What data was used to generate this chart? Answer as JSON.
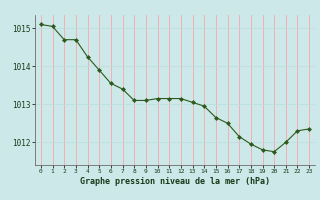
{
  "x": [
    0,
    1,
    2,
    3,
    4,
    5,
    6,
    7,
    8,
    9,
    10,
    11,
    12,
    13,
    14,
    15,
    16,
    17,
    18,
    19,
    20,
    21,
    22,
    23
  ],
  "y": [
    1015.1,
    1015.05,
    1014.7,
    1014.7,
    1014.25,
    1013.9,
    1013.55,
    1013.4,
    1013.1,
    1013.1,
    1013.15,
    1013.15,
    1013.15,
    1013.05,
    1012.95,
    1012.65,
    1012.5,
    1012.15,
    1011.95,
    1011.8,
    1011.75,
    1012.0,
    1012.3,
    1012.35
  ],
  "line_color": "#2d5a1b",
  "marker_color": "#2d5a1b",
  "bg_color": "#cce8e8",
  "grid_color_v": "#ff9999",
  "grid_color_h": "#bbdddd",
  "axis_label_color": "#1a3a1a",
  "tick_label_color": "#1a3a1a",
  "xlabel": "Graphe pression niveau de la mer (hPa)",
  "ylim": [
    1011.4,
    1015.35
  ],
  "yticks": [
    1012,
    1013,
    1014,
    1015
  ],
  "xtick_labels": [
    "0",
    "1",
    "2",
    "3",
    "4",
    "5",
    "6",
    "7",
    "8",
    "9",
    "10",
    "11",
    "12",
    "13",
    "14",
    "15",
    "16",
    "17",
    "18",
    "19",
    "20",
    "21",
    "22",
    "23"
  ]
}
